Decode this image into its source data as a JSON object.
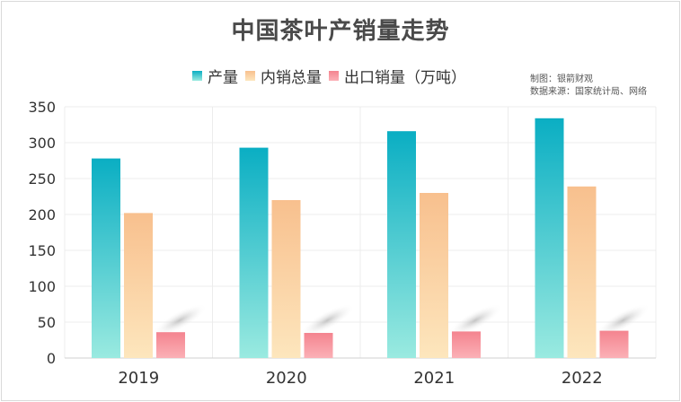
{
  "chart_data": {
    "type": "bar",
    "title": "中国茶叶产销量走势",
    "categories": [
      "2019",
      "2020",
      "2021",
      "2022"
    ],
    "series": [
      {
        "name": "产量",
        "values": [
          278,
          293,
          316,
          334
        ]
      },
      {
        "name": "内销总量",
        "values": [
          202,
          220,
          230,
          239
        ]
      },
      {
        "name": "出口销量（万吨）",
        "values": [
          36,
          35,
          37,
          38
        ]
      }
    ],
    "ylim": [
      0,
      350
    ],
    "yticks": [
      0,
      50,
      100,
      150,
      200,
      250,
      300,
      350
    ],
    "grid": true,
    "legend": "top-center",
    "colors": {
      "产量": [
        "#0aaec3",
        "#9aeae0"
      ],
      "内销总量": [
        "#f8c08e",
        "#fde6bd"
      ],
      "出口销量（万吨）": [
        "#f4848f",
        "#fbb0b6"
      ]
    }
  },
  "credit": {
    "line1": "制图：银箭财观",
    "line2": "数据来源：国家统计局、网络"
  }
}
